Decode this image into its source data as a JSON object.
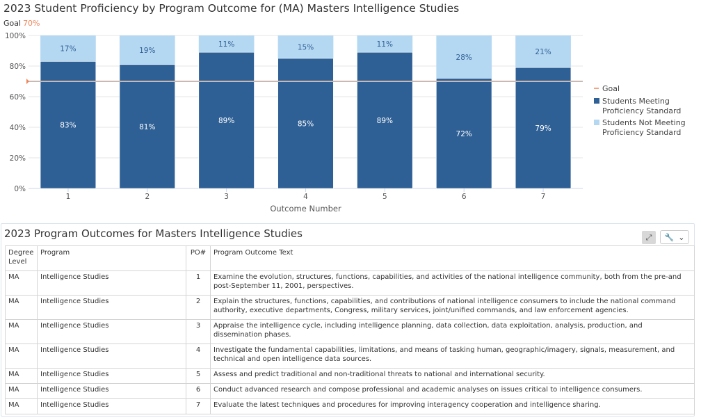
{
  "chart": {
    "title": "2023 Student Proficiency by Program Outcome for (MA) Masters Intelligence Studies",
    "goal_label": "Goal",
    "goal_value_label": "70%"
  },
  "chart_data": {
    "type": "bar",
    "stacked": true,
    "categories": [
      "1",
      "2",
      "3",
      "4",
      "5",
      "6",
      "7"
    ],
    "series": [
      {
        "name": "Students Meeting Proficiency Standard",
        "values": [
          83,
          81,
          89,
          85,
          89,
          72,
          79
        ],
        "color": "#2f6095"
      },
      {
        "name": "Students Not Meeting Proficiency Standard",
        "values": [
          17,
          19,
          11,
          15,
          11,
          28,
          21
        ],
        "color": "#b5d8f2"
      }
    ],
    "goal": {
      "name": "Goal",
      "value": 70,
      "color": "#f0865a"
    },
    "xlabel": "Outcome Number",
    "ylabel": "",
    "ylim": [
      0,
      100
    ],
    "yticks": [
      0,
      20,
      40,
      60,
      80,
      100
    ],
    "ytick_labels": [
      "0%",
      "20%",
      "40%",
      "60%",
      "80%",
      "100%"
    ],
    "value_suffix": "%",
    "grid": true,
    "legend_position": "right"
  },
  "table": {
    "title": "2023 Program Outcomes for Masters Intelligence Studies",
    "expand_icon": "expand-icon",
    "tools_icon": "wrench-icon",
    "columns": [
      "Degree Level",
      "Program",
      "PO#",
      "Program Outcome Text"
    ],
    "rows": [
      [
        "MA",
        "Intelligence Studies",
        "1",
        "Examine the evolution, structures, functions, capabilities, and activities of the national intelligence community, both from the pre-and post-September 11, 2001, perspectives."
      ],
      [
        "MA",
        "Intelligence Studies",
        "2",
        "Explain the structures, functions, capabilities, and contributions of national intelligence consumers to include the national command authority, executive departments, Congress, military services, joint/unified commands, and law enforcement agencies."
      ],
      [
        "MA",
        "Intelligence Studies",
        "3",
        "Appraise the intelligence cycle, including intelligence planning, data collection, data exploitation, analysis, production, and dissemination phases."
      ],
      [
        "MA",
        "Intelligence Studies",
        "4",
        "Investigate the fundamental capabilities, limitations, and means of tasking human, geographic/imagery, signals, measurement, and technical and open intelligence data sources."
      ],
      [
        "MA",
        "Intelligence Studies",
        "5",
        "Assess and predict traditional and non-traditional threats to national and international security."
      ],
      [
        "MA",
        "Intelligence Studies",
        "6",
        "Conduct advanced research and compose professional and academic analyses on issues critical to intelligence consumers."
      ],
      [
        "MA",
        "Intelligence Studies",
        "7",
        "Evaluate the latest techniques and procedures for improving interagency cooperation and intelligence sharing."
      ]
    ]
  }
}
